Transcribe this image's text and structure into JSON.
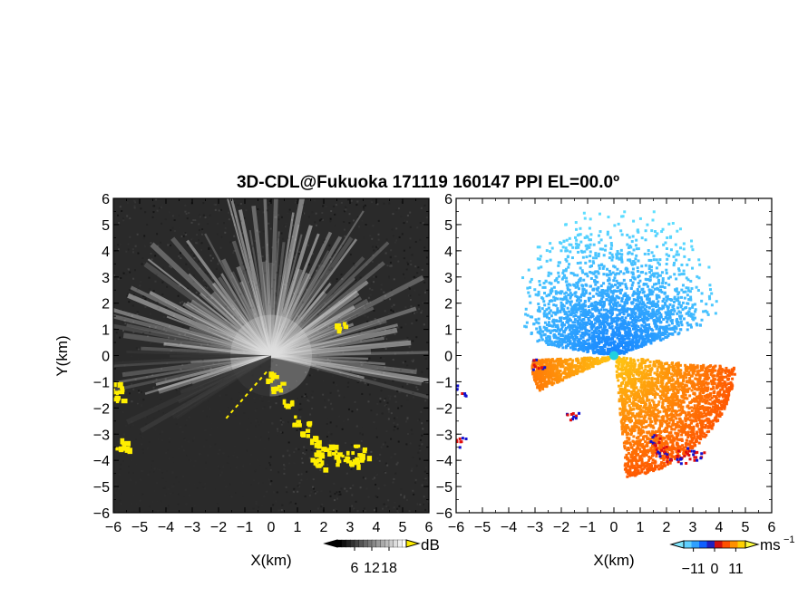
{
  "chart_data": [
    {
      "type": "heatmap",
      "panel": "reflectivity",
      "title": "3D-CDL@Fukuoka 171119 160147 PPI EL=00.0º",
      "title_superscript": "o",
      "xlabel": "X(km)",
      "ylabel": "Y(km)",
      "xlim": [
        -6,
        6
      ],
      "ylim": [
        -6,
        6
      ],
      "x_ticks": [
        -6,
        -5,
        -4,
        -3,
        -2,
        -1,
        0,
        1,
        2,
        3,
        4,
        5,
        6
      ],
      "y_ticks": [
        -6,
        -5,
        -4,
        -3,
        -2,
        -1,
        0,
        1,
        2,
        3,
        4,
        5,
        6
      ],
      "colorbar": {
        "unit": "dB",
        "ticks": [
          6,
          12,
          18
        ],
        "palette": "grayscale",
        "range": [
          0,
          24
        ]
      },
      "colors": {
        "background": "#2a2a2a",
        "highlight": "#ffee00"
      }
    },
    {
      "type": "heatmap",
      "panel": "doppler-velocity",
      "xlabel": "X(km)",
      "ylabel": "",
      "xlim": [
        -6,
        6
      ],
      "ylim": [
        -6,
        6
      ],
      "x_ticks": [
        -6,
        -5,
        -4,
        -3,
        -2,
        -1,
        0,
        1,
        2,
        3,
        4,
        5,
        6
      ],
      "y_ticks": [
        -6,
        -5,
        -4,
        -3,
        -2,
        -1,
        0,
        1,
        2,
        3,
        4,
        5,
        6
      ],
      "colorbar": {
        "unit": "ms",
        "unit_exponent": "−1",
        "ticks": [
          "−11",
          "0",
          "11"
        ],
        "range": [
          -16,
          16
        ]
      },
      "colors": {
        "approaching": "#1e8cff",
        "receding": "#ff6a00",
        "edge_red": "#e01010",
        "edge_blue": "#1010d0"
      }
    }
  ]
}
